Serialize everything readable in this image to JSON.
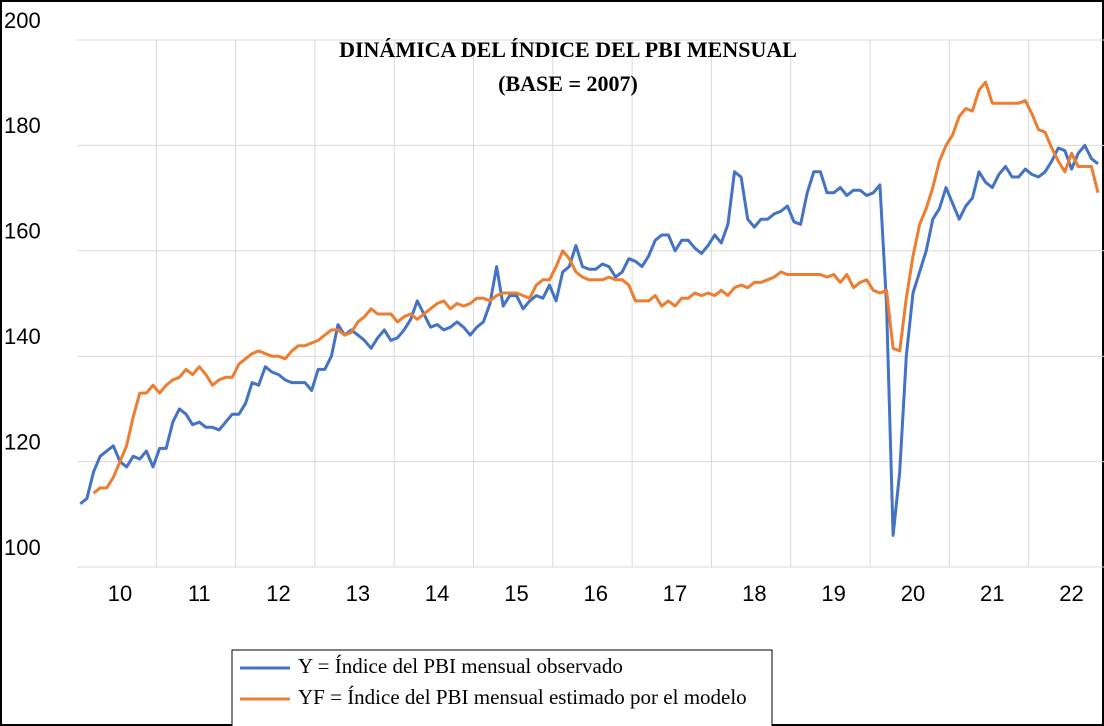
{
  "chart_data": {
    "type": "line",
    "title": "DINÁMICA DEL ÍNDICE DEL PBI MENSUAL",
    "subtitle": "(BASE = 2007)",
    "categories": [
      null,
      null,
      null,
      null,
      null,
      null,
      "10",
      null,
      null,
      null,
      null,
      null,
      null,
      null,
      null,
      null,
      null,
      null,
      "11",
      null,
      null,
      null,
      null,
      null,
      null,
      null,
      null,
      null,
      null,
      null,
      "12",
      null,
      null,
      null,
      null,
      null,
      null,
      null,
      null,
      null,
      null,
      null,
      "13",
      null,
      null,
      null,
      null,
      null,
      null,
      null,
      null,
      null,
      null,
      null,
      "14",
      null,
      null,
      null,
      null,
      null,
      null,
      null,
      null,
      null,
      null,
      null,
      "15",
      null,
      null,
      null,
      null,
      null,
      null,
      null,
      null,
      null,
      null,
      null,
      "16",
      null,
      null,
      null,
      null,
      null,
      null,
      null,
      null,
      null,
      null,
      null,
      "17",
      null,
      null,
      null,
      null,
      null,
      null,
      null,
      null,
      null,
      null,
      null,
      "18",
      null,
      null,
      null,
      null,
      null,
      null,
      null,
      null,
      null,
      null,
      null,
      "19",
      null,
      null,
      null,
      null,
      null,
      null,
      null,
      null,
      null,
      null,
      null,
      "20",
      null,
      null,
      null,
      null,
      null,
      null,
      null,
      null,
      null,
      null,
      null,
      "21",
      null,
      null,
      null,
      null,
      null,
      null,
      null,
      null,
      null,
      null,
      null,
      "22",
      null,
      null,
      null,
      null
    ],
    "series": [
      {
        "name": "Y = Índice del PBI mensual observado",
        "color": "#4472c4",
        "values": [
          112,
          113,
          118,
          121,
          122,
          123,
          120,
          119,
          121,
          120.5,
          122,
          119,
          122.5,
          122.5,
          127.5,
          130,
          129,
          127,
          127.5,
          126.5,
          126.5,
          126,
          127.5,
          129,
          129,
          131,
          135,
          134.5,
          138,
          137,
          136.5,
          135.5,
          135,
          135,
          135,
          133.5,
          137.5,
          137.5,
          140,
          146,
          144,
          145,
          144,
          143,
          141.5,
          143.5,
          145,
          143,
          143.5,
          145,
          147,
          150.5,
          148,
          145.5,
          146,
          145,
          145.5,
          146.5,
          145.5,
          144,
          145.5,
          146.5,
          150,
          157,
          149.5,
          151.5,
          151.5,
          149,
          150.5,
          151.5,
          151,
          153.5,
          150.5,
          156,
          157,
          161,
          157,
          156.5,
          156.5,
          157.5,
          157,
          155,
          156,
          158.5,
          158,
          157,
          159,
          162,
          163,
          163,
          160,
          162,
          162,
          160.5,
          159.5,
          161,
          163,
          161.5,
          165,
          175,
          174,
          166,
          164.5,
          166,
          166,
          167,
          167.5,
          168.5,
          165.5,
          165,
          171,
          175,
          175,
          171,
          171,
          172,
          170.5,
          171.5,
          171.5,
          170.5,
          171,
          172.5,
          150,
          106,
          118,
          140,
          152,
          156,
          160,
          166,
          168,
          172,
          169,
          166,
          168.5,
          170,
          175,
          173,
          172,
          174.5,
          176,
          174,
          174,
          175.5,
          174.5,
          174,
          175,
          177,
          179.5,
          179,
          175.5,
          178.5,
          180,
          177.5,
          176.5
        ]
      },
      {
        "name": "YF = Índice del PBI mensual estimado por el modelo",
        "color": "#ed7d31",
        "values": [
          null,
          null,
          114,
          115,
          115,
          117,
          120,
          123,
          128.5,
          133,
          133,
          134.5,
          133,
          134.5,
          135.5,
          136,
          137.5,
          136.5,
          138,
          136.5,
          134.5,
          135.5,
          136,
          136,
          138.5,
          139.5,
          140.5,
          141,
          140.5,
          140,
          140,
          139.5,
          141,
          142,
          142,
          142.5,
          143,
          144,
          145,
          145,
          144,
          144.5,
          146.5,
          147.5,
          149,
          148,
          148,
          148,
          146.5,
          147.5,
          148,
          147,
          148,
          149,
          150,
          150.5,
          149,
          150,
          149.5,
          150,
          151,
          151,
          150.5,
          151.5,
          152,
          152,
          152,
          151.5,
          151,
          153.5,
          154.5,
          154.5,
          157,
          160,
          158.5,
          156,
          155,
          154.5,
          154.5,
          154.5,
          155,
          154.5,
          154.5,
          153.5,
          150.5,
          150.5,
          150.5,
          151.5,
          149.5,
          150.5,
          149.5,
          151,
          151,
          152,
          151.5,
          152,
          151.5,
          152.5,
          151.5,
          153,
          153.5,
          153,
          154,
          154,
          154.5,
          155,
          156,
          155.5,
          155.5,
          155.5,
          155.5,
          155.5,
          155.5,
          155,
          155.5,
          154,
          155.5,
          153,
          154,
          154.5,
          152.5,
          152,
          152.5,
          141.5,
          141,
          151,
          159,
          165,
          168,
          172,
          177,
          180,
          182,
          185.5,
          187,
          186.5,
          190.5,
          192,
          188,
          188,
          188,
          188,
          188,
          188.5,
          186,
          183,
          182.5,
          179.5,
          177,
          175,
          178.5,
          176,
          176,
          176,
          171
        ]
      }
    ],
    "ylim": [
      100,
      200
    ],
    "yticks": [
      100,
      120,
      140,
      160,
      180,
      200
    ],
    "grid": true,
    "legend": "bottom"
  }
}
